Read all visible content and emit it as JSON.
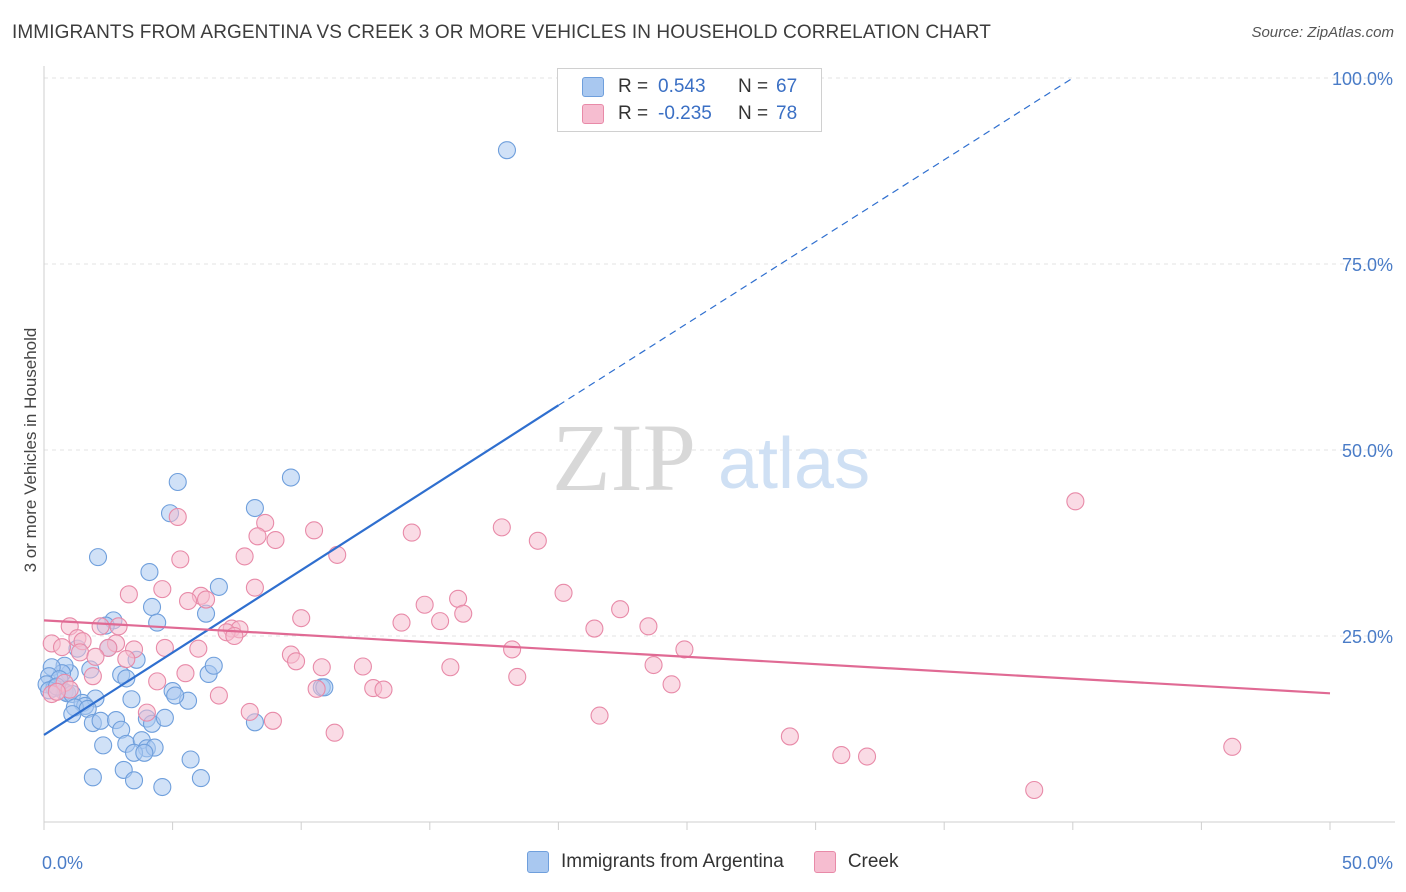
{
  "title": "IMMIGRANTS FROM ARGENTINA VS CREEK 3 OR MORE VEHICLES IN HOUSEHOLD CORRELATION CHART",
  "source": "Source: ZipAtlas.com",
  "watermark": {
    "zip": "ZIP",
    "atlas": "atlas"
  },
  "legend": {
    "rows": [
      {
        "r_label": "R =",
        "r_value": "0.543",
        "n_label": "N =",
        "n_value": "67",
        "color": "#a9c8f0",
        "stroke": "#6f9fdc"
      },
      {
        "r_label": "R =",
        "r_value": "-0.235",
        "n_label": "N =",
        "n_value": "78",
        "color": "#f6bdd0",
        "stroke": "#e88aa8"
      }
    ]
  },
  "bottom_legend": [
    "Immigrants from Argentina",
    "Creek"
  ],
  "chart_data": {
    "type": "scatter",
    "ylabel": "3 or more Vehicles in Household",
    "xlim": [
      0,
      50
    ],
    "ylim": [
      0,
      100
    ],
    "x_tick_labels": [
      "0.0%",
      "50.0%"
    ],
    "y_ticks": [
      25,
      50,
      75,
      100
    ],
    "y_tick_labels": [
      "25.0%",
      "50.0%",
      "75.0%",
      "100.0%"
    ],
    "grid": true,
    "legend_position": "top-center",
    "series": [
      {
        "name": "Immigrants from Argentina",
        "color": "#6f9fdc",
        "fill": "#a9c8f0",
        "trend": {
          "x0": 0,
          "y0": 11.7,
          "x1": 20,
          "y1": 56.0,
          "dash_to_x": 40,
          "dash_to_y": 100.0,
          "color": "#2f6fcf"
        },
        "points": [
          [
            18.0,
            90.3
          ],
          [
            9.6,
            46.3
          ],
          [
            5.2,
            45.7
          ],
          [
            4.9,
            41.5
          ],
          [
            8.2,
            42.2
          ],
          [
            2.1,
            35.6
          ],
          [
            4.1,
            33.6
          ],
          [
            6.8,
            31.6
          ],
          [
            4.2,
            28.9
          ],
          [
            4.4,
            26.8
          ],
          [
            6.3,
            28.0
          ],
          [
            2.7,
            27.1
          ],
          [
            2.4,
            26.4
          ],
          [
            3.6,
            21.8
          ],
          [
            3.0,
            19.8
          ],
          [
            3.2,
            19.3
          ],
          [
            6.4,
            19.9
          ],
          [
            6.6,
            21.0
          ],
          [
            2.5,
            23.4
          ],
          [
            1.3,
            23.3
          ],
          [
            1.8,
            20.5
          ],
          [
            1.0,
            20.0
          ],
          [
            0.8,
            21.0
          ],
          [
            0.7,
            20.0
          ],
          [
            0.3,
            20.8
          ],
          [
            0.2,
            19.6
          ],
          [
            0.6,
            19.2
          ],
          [
            0.1,
            18.5
          ],
          [
            0.4,
            18.0
          ],
          [
            0.8,
            17.5
          ],
          [
            0.9,
            17.3
          ],
          [
            1.1,
            17.2
          ],
          [
            1.5,
            16.0
          ],
          [
            2.0,
            16.6
          ],
          [
            3.4,
            16.5
          ],
          [
            5.0,
            17.6
          ],
          [
            5.6,
            16.3
          ],
          [
            5.1,
            17.0
          ],
          [
            1.6,
            15.6
          ],
          [
            1.2,
            15.4
          ],
          [
            1.7,
            15.2
          ],
          [
            1.1,
            14.5
          ],
          [
            1.9,
            13.3
          ],
          [
            2.2,
            13.6
          ],
          [
            2.8,
            13.7
          ],
          [
            4.0,
            13.9
          ],
          [
            4.2,
            13.2
          ],
          [
            4.7,
            14.0
          ],
          [
            3.0,
            12.4
          ],
          [
            2.3,
            10.3
          ],
          [
            3.2,
            10.5
          ],
          [
            3.8,
            11.0
          ],
          [
            4.0,
            9.9
          ],
          [
            4.3,
            10.0
          ],
          [
            3.5,
            9.3
          ],
          [
            3.9,
            9.3
          ],
          [
            5.7,
            8.4
          ],
          [
            3.1,
            7.0
          ],
          [
            1.9,
            6.0
          ],
          [
            3.5,
            5.6
          ],
          [
            4.6,
            4.7
          ],
          [
            6.1,
            5.9
          ],
          [
            8.2,
            13.4
          ],
          [
            10.8,
            18.1
          ],
          [
            10.9,
            18.1
          ],
          [
            0.2,
            17.7
          ],
          [
            0.5,
            18.2
          ]
        ]
      },
      {
        "name": "Creek",
        "color": "#e88aa8",
        "fill": "#f6bdd0",
        "trend": {
          "x0": 0,
          "y0": 27.1,
          "x1": 50,
          "y1": 17.3,
          "color": "#e06a94"
        },
        "points": [
          [
            40.1,
            43.1
          ],
          [
            5.2,
            41.0
          ],
          [
            8.6,
            40.2
          ],
          [
            10.5,
            39.2
          ],
          [
            14.3,
            38.9
          ],
          [
            17.8,
            39.6
          ],
          [
            8.3,
            38.4
          ],
          [
            9.0,
            37.9
          ],
          [
            19.2,
            37.8
          ],
          [
            11.4,
            35.9
          ],
          [
            5.3,
            35.3
          ],
          [
            7.8,
            35.7
          ],
          [
            4.6,
            31.3
          ],
          [
            8.2,
            31.5
          ],
          [
            3.3,
            30.6
          ],
          [
            6.1,
            30.4
          ],
          [
            6.3,
            29.9
          ],
          [
            5.6,
            29.7
          ],
          [
            20.2,
            30.8
          ],
          [
            16.1,
            30.0
          ],
          [
            14.8,
            29.2
          ],
          [
            16.3,
            28.0
          ],
          [
            22.4,
            28.6
          ],
          [
            10.0,
            27.4
          ],
          [
            13.9,
            26.8
          ],
          [
            15.4,
            27.0
          ],
          [
            21.4,
            26.0
          ],
          [
            23.5,
            26.3
          ],
          [
            1.0,
            26.3
          ],
          [
            2.2,
            26.3
          ],
          [
            2.9,
            26.3
          ],
          [
            7.3,
            26.0
          ],
          [
            7.6,
            25.9
          ],
          [
            7.1,
            25.5
          ],
          [
            7.4,
            25.0
          ],
          [
            1.3,
            24.7
          ],
          [
            1.5,
            24.3
          ],
          [
            0.3,
            24.0
          ],
          [
            2.8,
            24.0
          ],
          [
            0.7,
            23.5
          ],
          [
            2.5,
            23.4
          ],
          [
            3.5,
            23.2
          ],
          [
            4.7,
            23.4
          ],
          [
            6.0,
            23.3
          ],
          [
            1.4,
            22.8
          ],
          [
            9.6,
            22.5
          ],
          [
            18.2,
            23.2
          ],
          [
            24.9,
            23.2
          ],
          [
            2.0,
            22.2
          ],
          [
            3.2,
            21.9
          ],
          [
            9.8,
            21.6
          ],
          [
            10.8,
            20.8
          ],
          [
            12.4,
            20.9
          ],
          [
            15.8,
            20.8
          ],
          [
            23.7,
            21.1
          ],
          [
            5.5,
            20.0
          ],
          [
            1.9,
            19.6
          ],
          [
            18.4,
            19.5
          ],
          [
            24.4,
            18.5
          ],
          [
            0.8,
            18.7
          ],
          [
            4.4,
            18.9
          ],
          [
            10.6,
            17.9
          ],
          [
            12.8,
            18.0
          ],
          [
            13.2,
            17.8
          ],
          [
            1.0,
            17.8
          ],
          [
            0.3,
            17.2
          ],
          [
            6.8,
            17.0
          ],
          [
            4.0,
            14.7
          ],
          [
            8.0,
            14.8
          ],
          [
            8.9,
            13.6
          ],
          [
            21.6,
            14.3
          ],
          [
            11.3,
            12.0
          ],
          [
            29.0,
            11.5
          ],
          [
            46.2,
            10.1
          ],
          [
            31.0,
            9.0
          ],
          [
            32.0,
            8.8
          ],
          [
            38.5,
            4.3
          ],
          [
            0.5,
            17.5
          ]
        ]
      }
    ]
  }
}
